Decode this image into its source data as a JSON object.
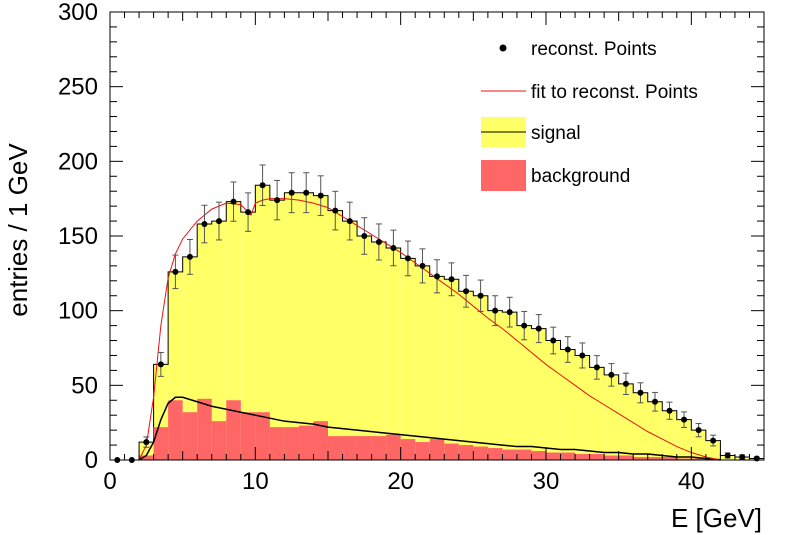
{
  "chart_data": {
    "type": "bar",
    "xlabel": "E [GeV]",
    "ylabel": "entries / 1 GeV",
    "xlim": [
      0,
      45
    ],
    "ylim": [
      0,
      300
    ],
    "x_ticks": [
      0,
      10,
      20,
      30,
      40
    ],
    "y_ticks": [
      0,
      50,
      100,
      150,
      200,
      250,
      300
    ],
    "bin_width": 1,
    "legend_position": "top-right",
    "colors": {
      "signal": "#ffff66",
      "background": "#ff6666",
      "points": "#000000",
      "fit": "#ee1111",
      "signal_line": "#000000"
    },
    "legend": [
      {
        "label": "reconst. Points",
        "style": "marker"
      },
      {
        "label": "fit to reconst. Points",
        "style": "line"
      },
      {
        "label": "signal",
        "style": "box-line"
      },
      {
        "label": "background",
        "style": "box"
      }
    ],
    "series": [
      {
        "name": "signal",
        "type": "hist",
        "x": [
          0.5,
          1.5,
          2.5,
          3.5,
          4.5,
          5.5,
          6.5,
          7.5,
          8.5,
          9.5,
          10.5,
          11.5,
          12.5,
          13.5,
          14.5,
          15.5,
          16.5,
          17.5,
          18.5,
          19.5,
          20.5,
          21.5,
          22.5,
          23.5,
          24.5,
          25.5,
          26.5,
          27.5,
          28.5,
          29.5,
          30.5,
          31.5,
          32.5,
          33.5,
          34.5,
          35.5,
          36.5,
          37.5,
          38.5,
          39.5,
          40.5,
          41.5,
          42.5,
          43.5,
          44.5
        ],
        "values": [
          0,
          0,
          12,
          64,
          126,
          136,
          158,
          160,
          173,
          166,
          184,
          174,
          179,
          179,
          177,
          167,
          160,
          150,
          146,
          142,
          135,
          130,
          123,
          121,
          113,
          110,
          100,
          99,
          90,
          88,
          80,
          74,
          70,
          62,
          57,
          51,
          45,
          39,
          33,
          27,
          20,
          13,
          3,
          2,
          1
        ]
      },
      {
        "name": "background",
        "type": "hist",
        "x": [
          0.5,
          1.5,
          2.5,
          3.5,
          4.5,
          5.5,
          6.5,
          7.5,
          8.5,
          9.5,
          10.5,
          11.5,
          12.5,
          13.5,
          14.5,
          15.5,
          16.5,
          17.5,
          18.5,
          19.5,
          20.5,
          21.5,
          22.5,
          23.5,
          24.5,
          25.5,
          26.5,
          27.5,
          28.5,
          29.5,
          30.5,
          31.5,
          32.5,
          33.5,
          34.5,
          35.5,
          36.5,
          37.5,
          38.5,
          39.5,
          40.5,
          41.5,
          42.5,
          43.5,
          44.5
        ],
        "values": [
          0,
          0,
          3,
          22,
          40,
          32,
          41,
          26,
          40,
          32,
          32,
          22,
          22,
          23,
          26,
          16,
          16,
          16,
          16,
          17,
          14,
          12,
          14,
          11,
          10,
          9,
          8,
          7,
          7,
          6,
          5,
          5,
          4,
          4,
          3,
          3,
          2,
          2,
          2,
          1,
          1,
          1,
          0,
          0,
          0
        ]
      },
      {
        "name": "reconst. Points",
        "type": "points",
        "x": [
          0.5,
          1.5,
          2.5,
          3.5,
          4.5,
          5.5,
          6.5,
          7.5,
          8.5,
          9.5,
          10.5,
          11.5,
          12.5,
          13.5,
          14.5,
          15.5,
          16.5,
          17.5,
          18.5,
          19.5,
          20.5,
          21.5,
          22.5,
          23.5,
          24.5,
          25.5,
          26.5,
          27.5,
          28.5,
          29.5,
          30.5,
          31.5,
          32.5,
          33.5,
          34.5,
          35.5,
          36.5,
          37.5,
          38.5,
          39.5,
          40.5,
          41.5,
          42.5,
          43.5,
          44.5
        ],
        "values": [
          0,
          0,
          12,
          64,
          126,
          136,
          158,
          160,
          173,
          166,
          184,
          174,
          179,
          179,
          177,
          167,
          160,
          150,
          146,
          142,
          135,
          130,
          123,
          121,
          113,
          110,
          100,
          99,
          90,
          88,
          80,
          74,
          70,
          62,
          57,
          51,
          45,
          39,
          33,
          27,
          20,
          13,
          3,
          2,
          1
        ]
      },
      {
        "name": "fit to reconst. Points",
        "type": "line",
        "x": [
          2,
          2.5,
          3,
          3.5,
          4,
          4.5,
          5,
          6,
          7,
          8,
          9,
          9.7,
          10,
          10.5,
          11,
          12,
          13,
          14,
          15,
          16,
          17,
          18,
          19,
          20,
          21,
          22,
          23,
          24,
          25,
          26,
          27,
          28,
          29,
          30,
          31,
          32,
          33,
          34,
          35,
          36,
          37,
          38,
          39,
          40,
          41,
          42,
          43
        ],
        "values": [
          0,
          10,
          42,
          90,
          122,
          138,
          148,
          160,
          168,
          172,
          171,
          164,
          172,
          174,
          175,
          175,
          174,
          172,
          169,
          163,
          157,
          151,
          145,
          139,
          132,
          125,
          118,
          111,
          103,
          95,
          88,
          80,
          72,
          64,
          57,
          50,
          43,
          37,
          31,
          25,
          19,
          14,
          9,
          5,
          2,
          0,
          0
        ]
      },
      {
        "name": "signal",
        "type": "line",
        "x": [
          2,
          2.5,
          3,
          3.5,
          4,
          4.5,
          5,
          6,
          7,
          8,
          9,
          10,
          11,
          12,
          13,
          14,
          15,
          16,
          17,
          18,
          19,
          20,
          21,
          22,
          23,
          24,
          25,
          26,
          27,
          28,
          29,
          30,
          31,
          32,
          33,
          34,
          35,
          36,
          37,
          38,
          39,
          40,
          41,
          42
        ],
        "values": [
          0,
          3,
          12,
          27,
          38,
          42,
          42,
          39,
          36,
          34,
          32,
          30,
          28,
          26,
          25,
          24,
          22,
          21,
          20,
          19,
          18,
          17,
          16,
          15,
          14,
          13,
          12,
          11,
          10,
          9,
          9,
          8,
          7,
          7,
          6,
          5,
          5,
          4,
          4,
          3,
          2,
          2,
          1,
          0
        ]
      }
    ]
  }
}
